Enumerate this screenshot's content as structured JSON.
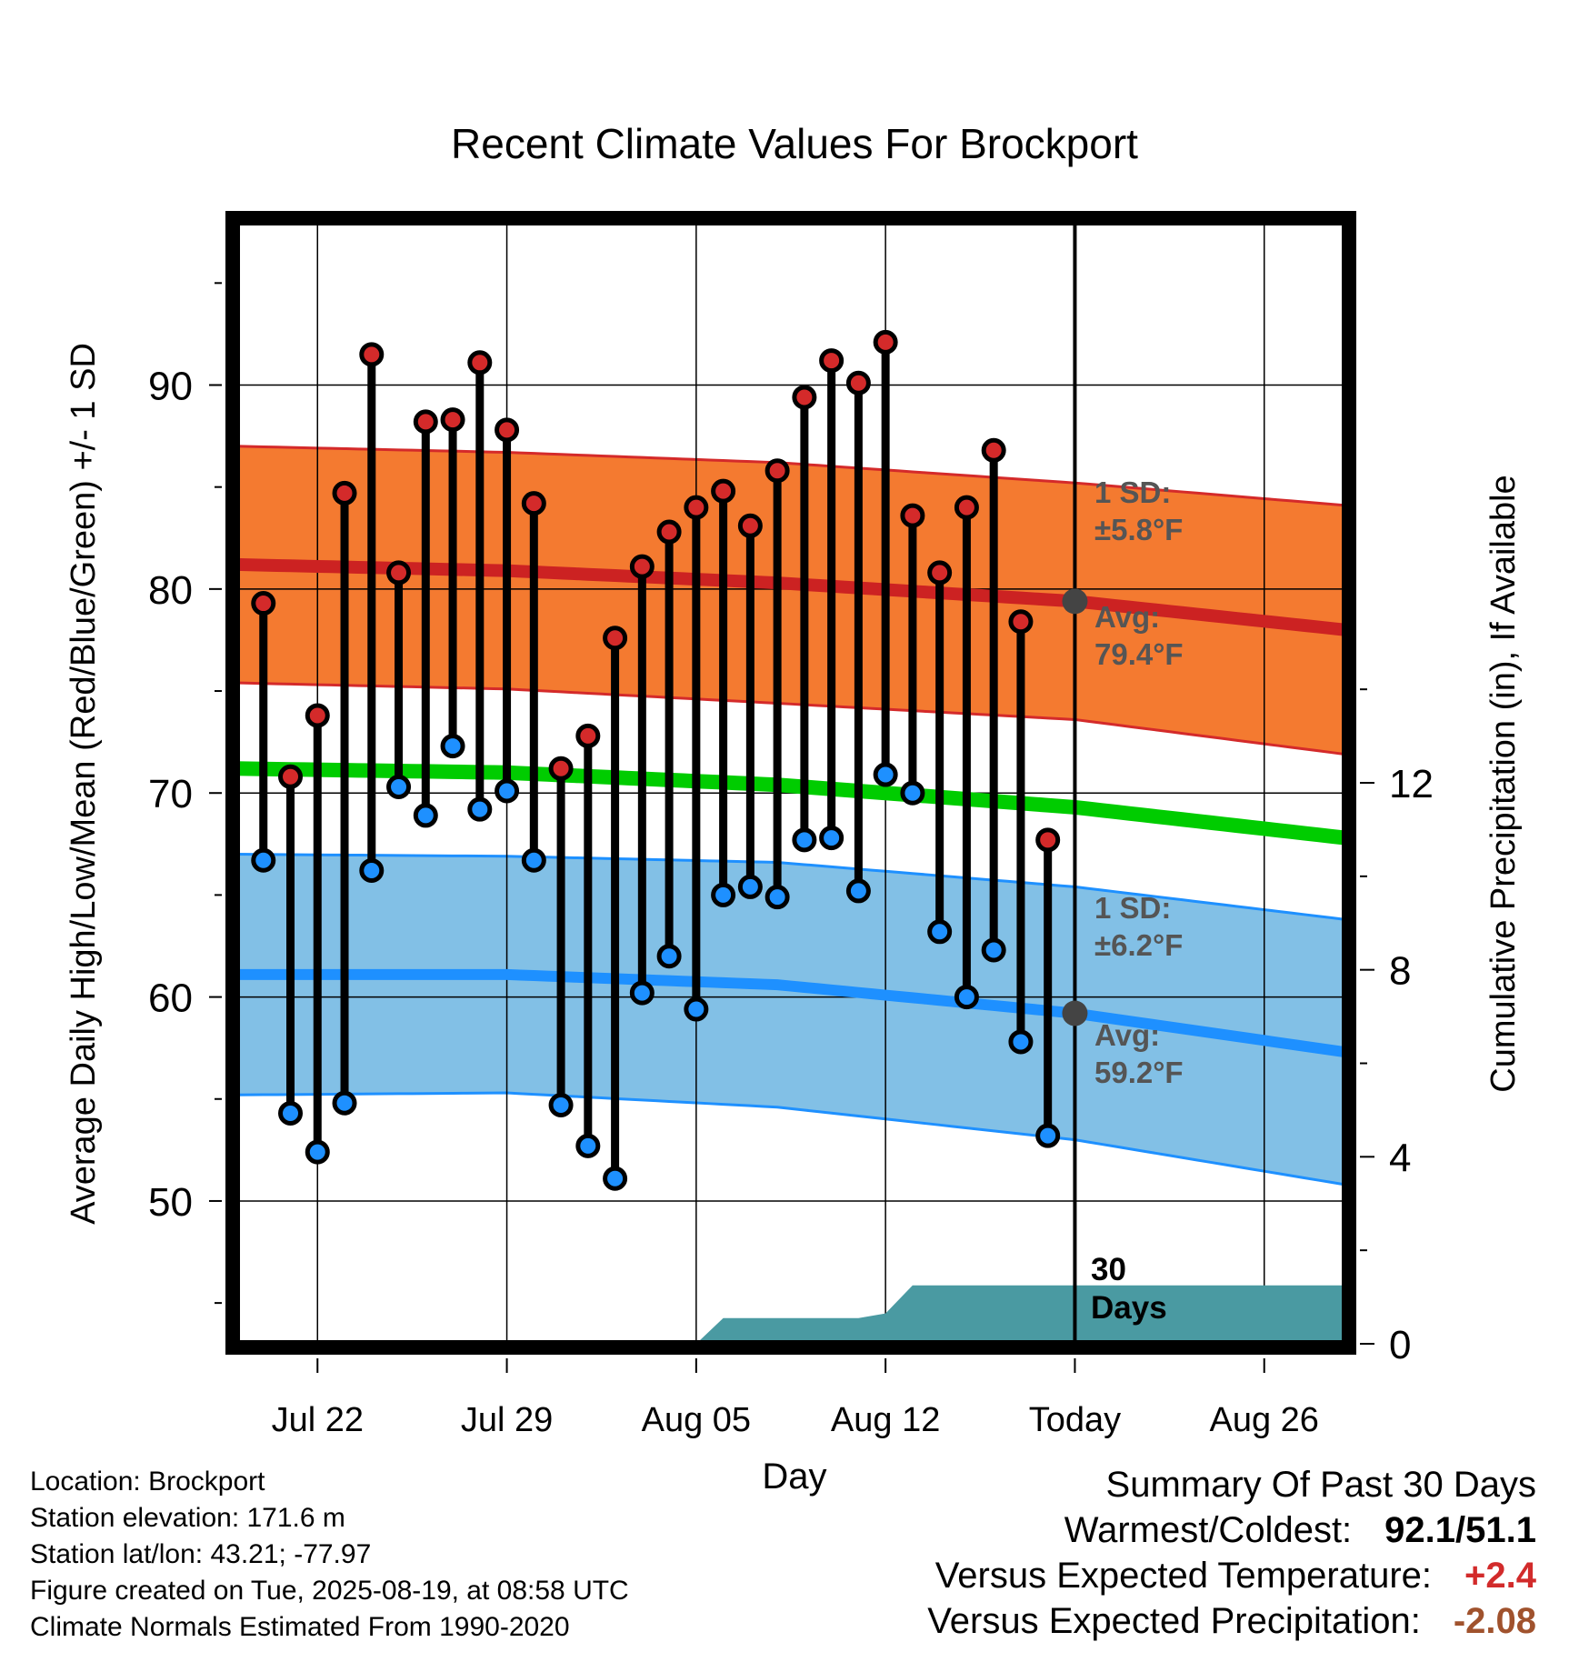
{
  "chart_data": {
    "type": "line",
    "title": "Recent Climate Values For Brockport",
    "xlabel": "Day",
    "ylabel_left": "Average Daily High/Low/Mean (Red/Blue/Green) +/- 1 SD",
    "ylabel_right": "Cumulative Precipitation (in), If Available",
    "x_ticks": [
      "Jul 22",
      "Jul 29",
      "Aug 05",
      "Aug 12",
      "Today",
      "Aug 26"
    ],
    "x_range": [
      "2025-07-19",
      "2025-08-29"
    ],
    "today": "2025-08-19",
    "today_label": "Today",
    "y_left_ticks": [
      50,
      60,
      70,
      80,
      90
    ],
    "y_left_range": [
      43,
      98
    ],
    "y_right_ticks": [
      0,
      4,
      8,
      12
    ],
    "y_right_range": [
      0,
      24
    ],
    "grid": true,
    "series": [
      {
        "name": "High",
        "color": "#cc2222",
        "dates": [
          "2025-07-20",
          "2025-07-21",
          "2025-07-22",
          "2025-07-23",
          "2025-07-24",
          "2025-07-25",
          "2025-07-26",
          "2025-07-27",
          "2025-07-28",
          "2025-07-29",
          "2025-07-30",
          "2025-07-31",
          "2025-08-01",
          "2025-08-02",
          "2025-08-03",
          "2025-08-04",
          "2025-08-05",
          "2025-08-06",
          "2025-08-07",
          "2025-08-08",
          "2025-08-09",
          "2025-08-10",
          "2025-08-11",
          "2025-08-12",
          "2025-08-13",
          "2025-08-14",
          "2025-08-15",
          "2025-08-16",
          "2025-08-17",
          "2025-08-18"
        ],
        "values": [
          79.3,
          70.8,
          73.8,
          84.7,
          91.5,
          80.8,
          88.2,
          88.3,
          91.1,
          87.8,
          84.2,
          71.2,
          72.8,
          77.6,
          81.1,
          82.8,
          84.0,
          84.8,
          83.1,
          85.8,
          89.4,
          91.2,
          90.1,
          92.1,
          83.6,
          80.8,
          84.0,
          86.8,
          78.4,
          67.7
        ]
      },
      {
        "name": "Low",
        "color": "#1e90ff",
        "dates": [
          "2025-07-20",
          "2025-07-21",
          "2025-07-22",
          "2025-07-23",
          "2025-07-24",
          "2025-07-25",
          "2025-07-26",
          "2025-07-27",
          "2025-07-28",
          "2025-07-29",
          "2025-07-30",
          "2025-07-31",
          "2025-08-01",
          "2025-08-02",
          "2025-08-03",
          "2025-08-04",
          "2025-08-05",
          "2025-08-06",
          "2025-08-07",
          "2025-08-08",
          "2025-08-09",
          "2025-08-10",
          "2025-08-11",
          "2025-08-12",
          "2025-08-13",
          "2025-08-14",
          "2025-08-15",
          "2025-08-16",
          "2025-08-17",
          "2025-08-18"
        ],
        "values": [
          66.7,
          54.3,
          52.4,
          54.8,
          66.2,
          70.3,
          68.9,
          72.3,
          69.2,
          70.1,
          66.7,
          54.7,
          52.7,
          51.1,
          60.2,
          62.0,
          59.4,
          65.0,
          65.4,
          64.9,
          67.7,
          67.8,
          65.2,
          70.9,
          70.0,
          63.2,
          60.0,
          62.3,
          57.8,
          53.2
        ]
      },
      {
        "name": "Normal High",
        "color": "#cc2222",
        "dates": [
          "2025-07-19",
          "2025-07-29",
          "2025-08-08",
          "2025-08-19",
          "2025-08-29"
        ],
        "values": [
          81.2,
          80.9,
          80.3,
          79.4,
          78.0
        ],
        "sd_band": [
          5.8,
          5.8,
          5.9,
          5.8,
          6.1
        ]
      },
      {
        "name": "Normal Mean",
        "color": "#00cc00",
        "dates": [
          "2025-07-19",
          "2025-07-29",
          "2025-08-08",
          "2025-08-19",
          "2025-08-29"
        ],
        "values": [
          71.2,
          71.0,
          70.4,
          69.3,
          67.8
        ]
      },
      {
        "name": "Normal Low",
        "color": "#1e90ff",
        "dates": [
          "2025-07-19",
          "2025-07-29",
          "2025-08-08",
          "2025-08-19",
          "2025-08-29"
        ],
        "values": [
          61.1,
          61.1,
          60.6,
          59.2,
          57.3
        ],
        "sd_band": [
          5.9,
          5.8,
          6.0,
          6.2,
          6.5
        ]
      },
      {
        "name": "Cumulative Precipitation",
        "color": "#4a9aa2",
        "dates": [
          "2025-08-05",
          "2025-08-06",
          "2025-08-11",
          "2025-08-12",
          "2025-08-13",
          "2025-08-29"
        ],
        "values": [
          0.0,
          0.55,
          0.55,
          0.65,
          1.25,
          1.25
        ]
      }
    ],
    "annotations": {
      "high_sd_title": "1 SD:",
      "high_sd_value": "±5.8°F",
      "high_avg_title": "Avg:",
      "high_avg_value": "79.4°F",
      "low_sd_title": "1 SD:",
      "low_sd_value": "±6.2°F",
      "low_avg_title": "Avg:",
      "low_avg_value": "59.2°F",
      "days_number": "30",
      "days_word": "Days"
    }
  },
  "info": {
    "location": "Location: Brockport",
    "elevation": "Station elevation: 171.6 m",
    "latlon": "Station lat/lon: 43.21; -77.97",
    "created": "Figure created on Tue, 2025-08-19, at 08:58 UTC",
    "normals": "Climate Normals Estimated From 1990-2020"
  },
  "summary": {
    "title": "Summary Of Past 30 Days",
    "warmest_coldest_label": "Warmest/Coldest:",
    "warmest_coldest_value": "92.1/51.1",
    "temp_label": "Versus Expected Temperature:",
    "temp_value": "+2.4",
    "temp_color": "#d22b2b",
    "precip_label": "Versus Expected Precipitation:",
    "precip_value": "-2.08",
    "precip_color": "#a0522d"
  }
}
